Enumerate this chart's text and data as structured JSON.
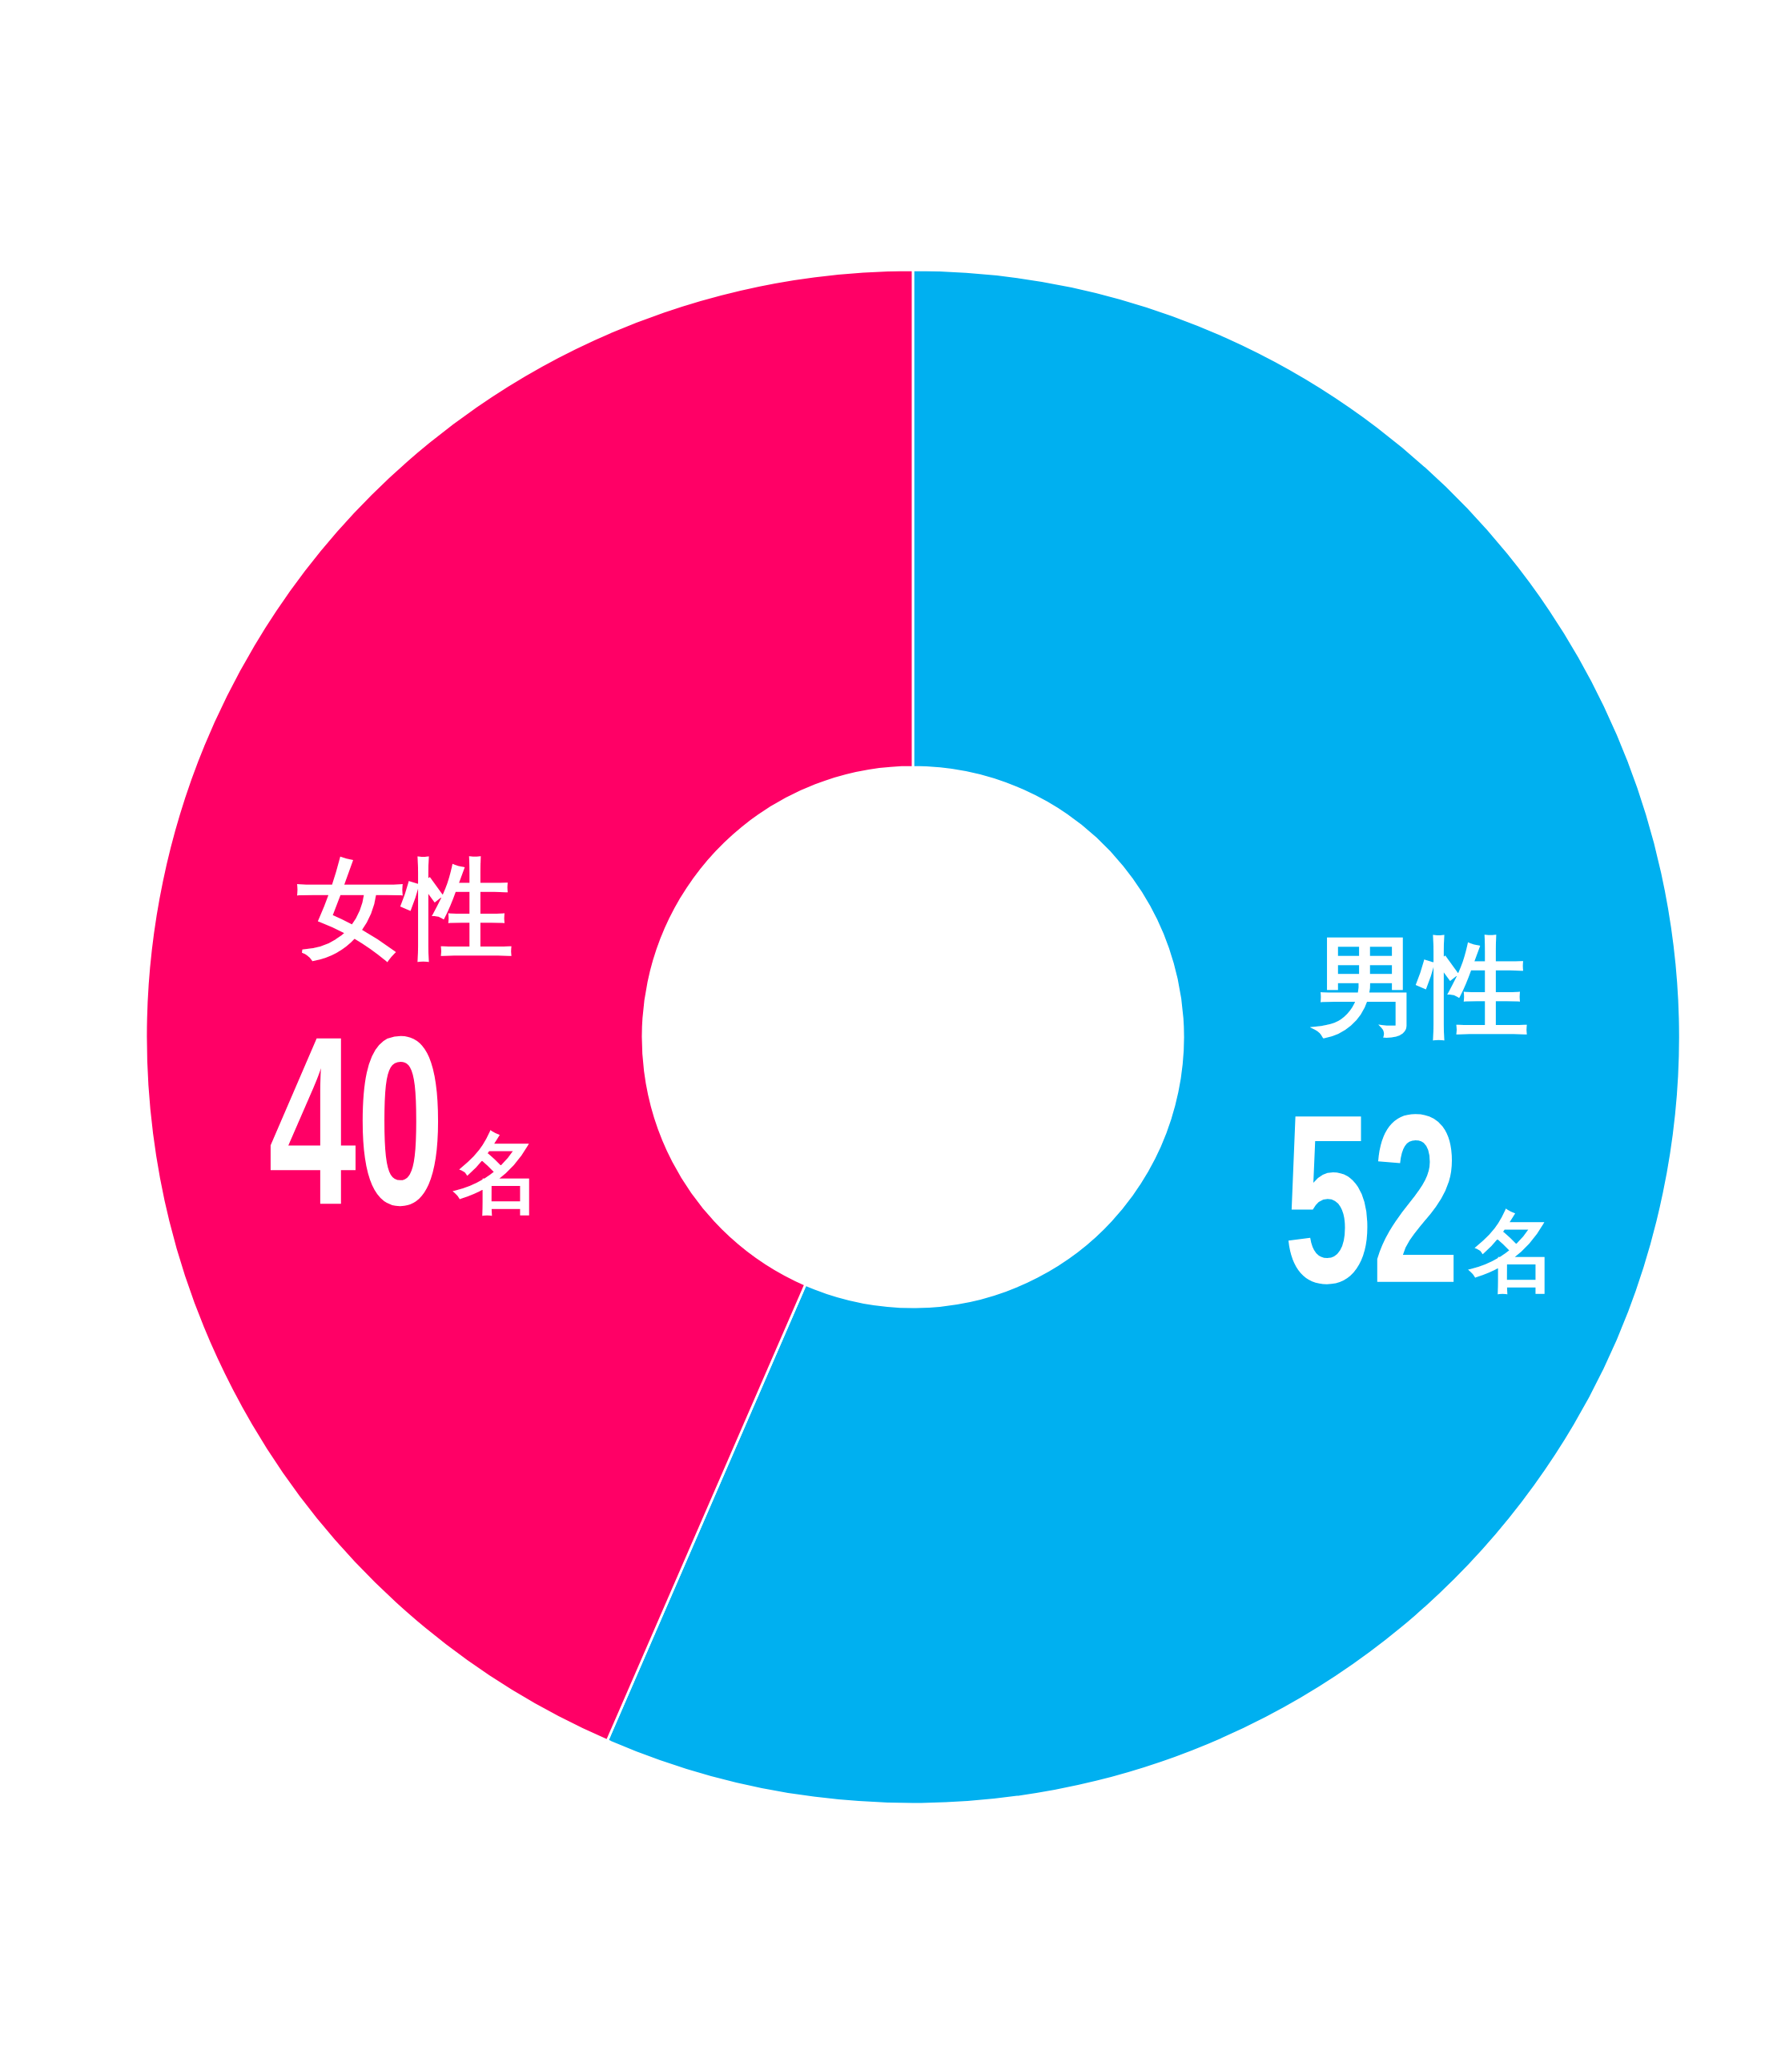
{
  "chart_data": {
    "type": "donut",
    "categories": [
      "男性",
      "女性"
    ],
    "values": [
      52,
      40
    ],
    "colors": [
      "#00b0f0",
      "#ff0066"
    ],
    "value_labels": [
      "52名",
      "40名"
    ]
  }
}
